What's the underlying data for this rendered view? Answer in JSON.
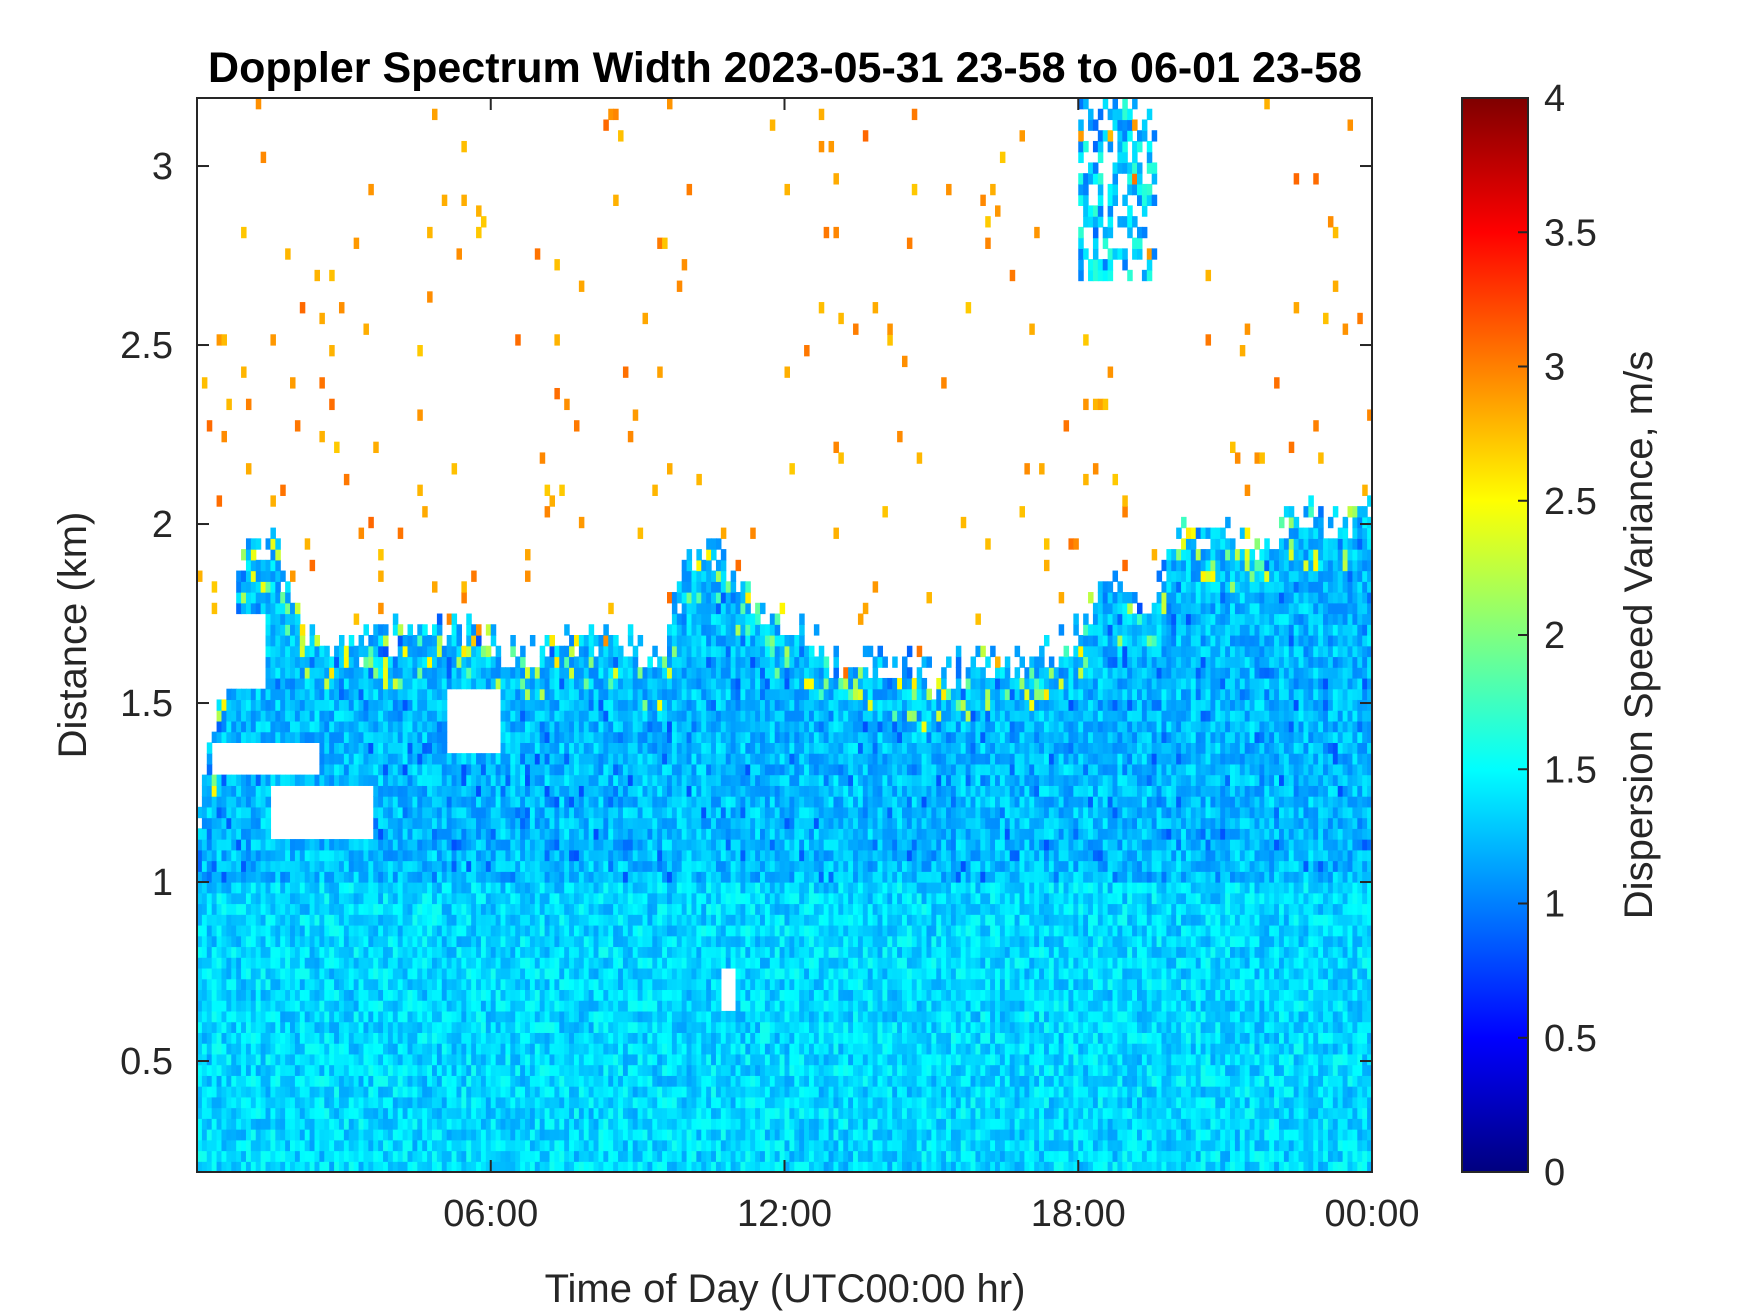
{
  "chart_data": {
    "type": "heatmap",
    "title": "Doppler Spectrum Width 2023-05-31 23-58 to 06-01 23-58",
    "xlabel": "Time of Day (UTC00:00 hr)",
    "ylabel": "Distance (km)",
    "colorbar_label": "Dispersion Speed Variance, m/s",
    "colormap": "jet",
    "xlim": [
      0,
      24
    ],
    "ylim": [
      0.19,
      3.19
    ],
    "clim": [
      0,
      4
    ],
    "x_ticks": [
      {
        "value": 6,
        "label": "06:00"
      },
      {
        "value": 12,
        "label": "12:00"
      },
      {
        "value": 18,
        "label": "18:00"
      },
      {
        "value": 24,
        "label": "00:00"
      }
    ],
    "y_ticks": [
      {
        "value": 0.5,
        "label": "0.5"
      },
      {
        "value": 1,
        "label": "1"
      },
      {
        "value": 1.5,
        "label": "1.5"
      },
      {
        "value": 2,
        "label": "2"
      },
      {
        "value": 2.5,
        "label": "2.5"
      },
      {
        "value": 3,
        "label": "3"
      }
    ],
    "colorbar_ticks": [
      {
        "value": 0,
        "label": "0"
      },
      {
        "value": 0.5,
        "label": "0.5"
      },
      {
        "value": 1,
        "label": "1"
      },
      {
        "value": 1.5,
        "label": "1.5"
      },
      {
        "value": 2,
        "label": "2"
      },
      {
        "value": 2.5,
        "label": "2.5"
      },
      {
        "value": 3,
        "label": "3"
      },
      {
        "value": 3.5,
        "label": "3.5"
      },
      {
        "value": 4,
        "label": "4"
      }
    ],
    "data_top_height_km": {
      "time_hr": [
        0,
        0.5,
        1,
        1.5,
        2,
        2.5,
        3,
        4,
        5,
        6,
        6.5,
        7,
        8,
        9,
        9.5,
        10,
        10.5,
        11,
        11.5,
        12,
        12.5,
        13,
        14,
        15,
        16,
        17,
        17.5,
        18,
        18.5,
        19,
        19.5,
        20,
        21,
        22,
        22.5,
        23,
        24
      ],
      "height_km": [
        1.18,
        1.5,
        1.95,
        1.95,
        1.8,
        1.65,
        1.65,
        1.7,
        1.72,
        1.68,
        1.62,
        1.65,
        1.7,
        1.65,
        1.6,
        1.9,
        1.95,
        1.85,
        1.75,
        1.72,
        1.68,
        1.62,
        1.6,
        1.58,
        1.62,
        1.6,
        1.65,
        1.7,
        1.85,
        1.8,
        1.75,
        1.98,
        1.98,
        1.92,
        2.05,
        1.98,
        2.05
      ]
    },
    "gaps_km": [
      {
        "time_hr": [
          0.1,
          1.4
        ],
        "height_km": [
          1.55,
          1.75
        ]
      },
      {
        "time_hr": [
          1.5,
          3.6
        ],
        "height_km": [
          1.12,
          1.28
        ]
      },
      {
        "time_hr": [
          0.3,
          2.5
        ],
        "height_km": [
          1.3,
          1.4
        ]
      },
      {
        "time_hr": [
          5.1,
          6.2
        ],
        "height_km": [
          1.35,
          1.55
        ]
      },
      {
        "time_hr": [
          10.7,
          11.0
        ],
        "height_km": [
          0.65,
          0.77
        ]
      }
    ],
    "cloud_km": {
      "time_hr": [
        18.0,
        19.6
      ],
      "height_km": [
        2.68,
        3.19
      ]
    },
    "typical_values": {
      "below_1km": 1.35,
      "above_1km": 1.25,
      "sparse_noise": 2.9
    }
  }
}
